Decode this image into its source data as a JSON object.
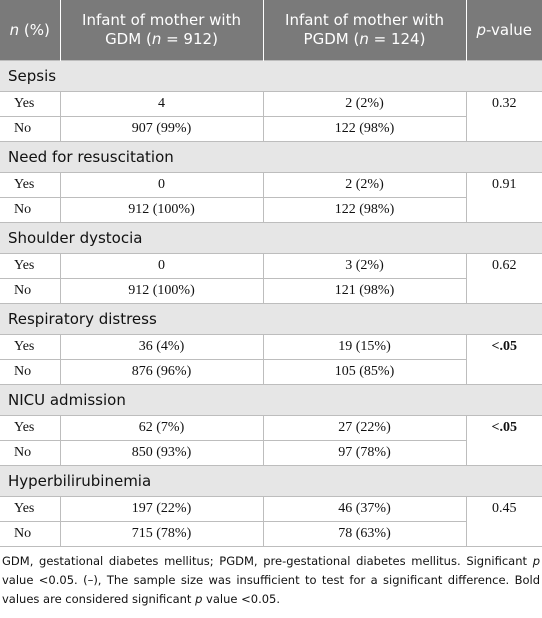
{
  "header": {
    "col1_n": "n",
    "col1_rest": " (%)",
    "col2_line1": "Infant of mother with",
    "col2_line2_pre": "GDM (",
    "col2_n": "n",
    "col2_line2_post": " = 912)",
    "col3_line1": "Infant of mother with",
    "col3_line2_pre": "PGDM (",
    "col3_n": "n",
    "col3_line2_post": " = 124)",
    "col4_p": "p",
    "col4_rest": "-value"
  },
  "sections": [
    {
      "title": "Sepsis",
      "p": "0.32",
      "p_bold": false,
      "rows": [
        {
          "label": "Yes",
          "gdm": "4",
          "pgdm": "2 (2%)"
        },
        {
          "label": "No",
          "gdm": "907 (99%)",
          "pgdm": "122 (98%)"
        }
      ]
    },
    {
      "title": "Need for resuscitation",
      "p": "0.91",
      "p_bold": false,
      "rows": [
        {
          "label": "Yes",
          "gdm": "0",
          "pgdm": "2 (2%)"
        },
        {
          "label": "No",
          "gdm": "912 (100%)",
          "pgdm": "122 (98%)"
        }
      ]
    },
    {
      "title": "Shoulder dystocia",
      "p": "0.62",
      "p_bold": false,
      "rows": [
        {
          "label": "Yes",
          "gdm": "0",
          "pgdm": "3 (2%)"
        },
        {
          "label": "No",
          "gdm": "912 (100%)",
          "pgdm": "121 (98%)"
        }
      ]
    },
    {
      "title": "Respiratory distress",
      "p": "<.05",
      "p_bold": true,
      "rows": [
        {
          "label": "Yes",
          "gdm": "36 (4%)",
          "pgdm": "19 (15%)"
        },
        {
          "label": "No",
          "gdm": "876 (96%)",
          "pgdm": "105 (85%)"
        }
      ]
    },
    {
      "title": "NICU admission",
      "p": "<.05",
      "p_bold": true,
      "rows": [
        {
          "label": "Yes",
          "gdm": "62 (7%)",
          "pgdm": "27 (22%)"
        },
        {
          "label": "No",
          "gdm": "850 (93%)",
          "pgdm": "97 (78%)"
        }
      ]
    },
    {
      "title": "Hyperbilirubinemia",
      "p": "0.45",
      "p_bold": false,
      "rows": [
        {
          "label": "Yes",
          "gdm": "197 (22%)",
          "pgdm": "46 (37%)"
        },
        {
          "label": "No",
          "gdm": "715 (78%)",
          "pgdm": "78 (63%)"
        }
      ]
    }
  ],
  "footnote": {
    "line1": "GDM, gestational diabetes mellitus; PGDM, pre-gestational diabetes mellitus.",
    "line2_pre": "Significant ",
    "line2_p": "p",
    "line2_post": " value <0.05. (–), The sample size was insufficient to test for a significant difference. Bold values are considered significant ",
    "line2_p2": "p",
    "line2_end": " value <0.05."
  }
}
